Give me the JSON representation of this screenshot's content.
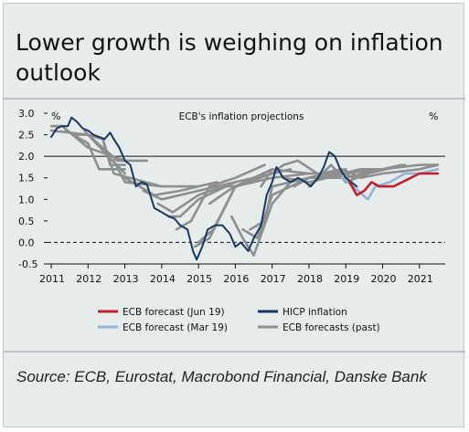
{
  "title": "Lower growth is weighing on inflation outlook",
  "source": "Source: ECB, Eurostat, Macrobond Financial, Danske Bank",
  "colors": {
    "background": "#e6ebec",
    "hicp": "#17375e",
    "jun19": "#c0202a",
    "mar19": "#93b3d2",
    "past": "#8e8e8e"
  },
  "chart_data": {
    "type": "line",
    "title": "ECB's inflation projections",
    "ylabel_left": "%",
    "ylabel_right": "%",
    "ylim": [
      -0.5,
      3.0
    ],
    "yticks": [
      3.0,
      2.5,
      2.0,
      1.5,
      1.0,
      0.5,
      0.0,
      -0.5
    ],
    "ytick_labels": [
      "3.0",
      "2.5",
      "2.0",
      "1.5",
      "1.0",
      "0.5",
      "0.0",
      "-0.5"
    ],
    "xlim": [
      2010.9,
      2021.7
    ],
    "xticks": [
      2011,
      2012,
      2013,
      2014,
      2015,
      2016,
      2017,
      2018,
      2019,
      2020,
      2021
    ],
    "xtick_labels": [
      "2011",
      "2012",
      "2013",
      "2014",
      "2015",
      "2016",
      "2017",
      "2018",
      "2019",
      "2020",
      "2021"
    ],
    "reference_lines": [
      {
        "y": 2.0,
        "style": "solid"
      },
      {
        "y": 0.0,
        "style": "dashed"
      }
    ],
    "legend": [
      {
        "label": "ECB forecast (Jun 19)",
        "series": "jun19"
      },
      {
        "label": "HICP inflation",
        "series": "hicp"
      },
      {
        "label": "ECB forecast (Mar 19)",
        "series": "mar19"
      },
      {
        "label": "ECB forecasts (past)",
        "series": "past"
      }
    ],
    "series": [
      {
        "key": "past",
        "points": [
          [
            2011.0,
            2.6
          ],
          [
            2012.0,
            2.5
          ],
          [
            2013.0,
            1.6
          ]
        ]
      },
      {
        "key": "past",
        "points": [
          [
            2011.0,
            2.7
          ],
          [
            2011.3,
            2.7
          ],
          [
            2012.0,
            2.2
          ],
          [
            2013.0,
            1.9
          ]
        ]
      },
      {
        "key": "past",
        "points": [
          [
            2011.4,
            2.6
          ],
          [
            2012.0,
            2.3
          ],
          [
            2012.3,
            1.7
          ],
          [
            2013.0,
            1.7
          ]
        ]
      },
      {
        "key": "past",
        "points": [
          [
            2011.6,
            2.5
          ],
          [
            2012.0,
            2.5
          ],
          [
            2012.4,
            2.4
          ],
          [
            2012.6,
            1.8
          ],
          [
            2013.0,
            1.8
          ]
        ]
      },
      {
        "key": "past",
        "points": [
          [
            2011.9,
            2.6
          ],
          [
            2012.0,
            2.5
          ],
          [
            2012.8,
            1.9
          ],
          [
            2013.6,
            1.9
          ]
        ]
      },
      {
        "key": "past",
        "points": [
          [
            2012.4,
            2.4
          ],
          [
            2012.7,
            1.6
          ],
          [
            2014.0,
            1.3
          ]
        ]
      },
      {
        "key": "past",
        "points": [
          [
            2012.7,
            1.9
          ],
          [
            2013.0,
            1.4
          ],
          [
            2014.0,
            1.3
          ],
          [
            2015.0,
            1.3
          ]
        ]
      },
      {
        "key": "past",
        "points": [
          [
            2013.0,
            1.5
          ],
          [
            2013.8,
            1.1
          ],
          [
            2014.5,
            1.2
          ],
          [
            2015.5,
            1.4
          ]
        ]
      },
      {
        "key": "past",
        "points": [
          [
            2013.5,
            1.2
          ],
          [
            2014.0,
            1.0
          ],
          [
            2015.0,
            1.2
          ],
          [
            2016.0,
            1.4
          ]
        ]
      },
      {
        "key": "past",
        "points": [
          [
            2013.9,
            0.9
          ],
          [
            2014.3,
            0.7
          ],
          [
            2015.0,
            1.1
          ],
          [
            2016.0,
            1.4
          ]
        ]
      },
      {
        "key": "past",
        "points": [
          [
            2014.2,
            0.6
          ],
          [
            2014.5,
            0.6
          ],
          [
            2015.0,
            1.0
          ],
          [
            2016.0,
            1.4
          ],
          [
            2016.5,
            1.5
          ]
        ]
      },
      {
        "key": "past",
        "points": [
          [
            2014.4,
            0.3
          ],
          [
            2014.8,
            0.5
          ],
          [
            2015.3,
            1.3
          ],
          [
            2016.0,
            1.5
          ],
          [
            2016.8,
            1.8
          ]
        ]
      },
      {
        "key": "past",
        "points": [
          [
            2014.9,
            -0.1
          ],
          [
            2015.3,
            0.1
          ],
          [
            2016.0,
            1.3
          ],
          [
            2017.0,
            1.6
          ]
        ]
      },
      {
        "key": "past",
        "points": [
          [
            2015.0,
            0.0
          ],
          [
            2015.4,
            0.3
          ],
          [
            2016.0,
            1.3
          ],
          [
            2017.0,
            1.7
          ]
        ]
      },
      {
        "key": "past",
        "points": [
          [
            2015.3,
            0.9
          ],
          [
            2015.8,
            1.2
          ],
          [
            2016.5,
            1.5
          ],
          [
            2017.5,
            1.7
          ]
        ]
      },
      {
        "key": "past",
        "points": [
          [
            2015.6,
            1.3
          ],
          [
            2016.0,
            1.3
          ],
          [
            2017.0,
            1.5
          ],
          [
            2018.0,
            1.6
          ]
        ]
      },
      {
        "key": "past",
        "points": [
          [
            2015.9,
            0.6
          ],
          [
            2016.2,
            0.1
          ],
          [
            2016.5,
            -0.3
          ],
          [
            2017.0,
            0.9
          ],
          [
            2017.5,
            1.4
          ],
          [
            2018.5,
            1.6
          ]
        ]
      },
      {
        "key": "past",
        "points": [
          [
            2016.2,
            0.3
          ],
          [
            2016.6,
            0.1
          ],
          [
            2017.0,
            1.1
          ],
          [
            2018.0,
            1.5
          ],
          [
            2018.7,
            1.6
          ]
        ]
      },
      {
        "key": "past",
        "points": [
          [
            2016.4,
            0.3
          ],
          [
            2016.8,
            0.5
          ],
          [
            2017.0,
            1.3
          ],
          [
            2018.0,
            1.5
          ],
          [
            2019.0,
            1.7
          ]
        ]
      },
      {
        "key": "past",
        "points": [
          [
            2016.7,
            1.3
          ],
          [
            2017.0,
            1.7
          ],
          [
            2018.0,
            1.6
          ],
          [
            2019.0,
            1.6
          ],
          [
            2019.7,
            1.7
          ]
        ]
      },
      {
        "key": "past",
        "points": [
          [
            2017.0,
            1.6
          ],
          [
            2017.3,
            1.8
          ],
          [
            2017.7,
            1.9
          ],
          [
            2018.4,
            1.5
          ],
          [
            2019.4,
            1.7
          ],
          [
            2020.0,
            1.7
          ]
        ]
      },
      {
        "key": "past",
        "points": [
          [
            2017.3,
            1.5
          ],
          [
            2018.0,
            1.4
          ],
          [
            2019.0,
            1.6
          ],
          [
            2020.0,
            1.7
          ]
        ]
      },
      {
        "key": "past",
        "points": [
          [
            2017.6,
            1.3
          ],
          [
            2018.0,
            1.5
          ],
          [
            2019.0,
            1.5
          ],
          [
            2020.0,
            1.7
          ],
          [
            2020.5,
            1.8
          ]
        ]
      },
      {
        "key": "past",
        "points": [
          [
            2018.0,
            1.3
          ],
          [
            2018.6,
            1.8
          ],
          [
            2019.0,
            1.4
          ],
          [
            2019.6,
            1.6
          ],
          [
            2020.6,
            1.8
          ]
        ]
      },
      {
        "key": "past",
        "points": [
          [
            2018.3,
            1.6
          ],
          [
            2018.9,
            1.7
          ],
          [
            2019.4,
            1.5
          ],
          [
            2020.0,
            1.6
          ],
          [
            2021.0,
            1.7
          ],
          [
            2021.5,
            1.8
          ]
        ]
      },
      {
        "key": "past",
        "points": [
          [
            2018.7,
            1.7
          ],
          [
            2019.2,
            1.5
          ],
          [
            2020.0,
            1.7
          ],
          [
            2021.0,
            1.8
          ],
          [
            2021.5,
            1.8
          ]
        ]
      },
      {
        "key": "mar19",
        "points": [
          [
            2018.9,
            1.5
          ],
          [
            2019.2,
            1.3
          ],
          [
            2019.6,
            1.0
          ],
          [
            2019.8,
            1.3
          ],
          [
            2020.2,
            1.4
          ],
          [
            2020.6,
            1.6
          ],
          [
            2021.0,
            1.6
          ],
          [
            2021.5,
            1.7
          ]
        ]
      },
      {
        "key": "jun19",
        "points": [
          [
            2019.1,
            1.4
          ],
          [
            2019.3,
            1.1
          ],
          [
            2019.5,
            1.2
          ],
          [
            2019.7,
            1.4
          ],
          [
            2019.9,
            1.3
          ],
          [
            2020.3,
            1.3
          ],
          [
            2021.0,
            1.6
          ],
          [
            2021.5,
            1.6
          ]
        ]
      },
      {
        "key": "hicp",
        "points": [
          [
            2011.0,
            2.45
          ],
          [
            2011.15,
            2.65
          ],
          [
            2011.3,
            2.7
          ],
          [
            2011.45,
            2.7
          ],
          [
            2011.55,
            2.9
          ],
          [
            2011.7,
            2.8
          ],
          [
            2011.85,
            2.65
          ],
          [
            2012.0,
            2.6
          ],
          [
            2012.15,
            2.5
          ],
          [
            2012.3,
            2.45
          ],
          [
            2012.45,
            2.4
          ],
          [
            2012.6,
            2.55
          ],
          [
            2012.7,
            2.4
          ],
          [
            2012.85,
            2.2
          ],
          [
            2013.0,
            1.9
          ],
          [
            2013.15,
            1.8
          ],
          [
            2013.3,
            1.3
          ],
          [
            2013.45,
            1.4
          ],
          [
            2013.6,
            1.35
          ],
          [
            2013.8,
            0.8
          ],
          [
            2014.0,
            0.7
          ],
          [
            2014.2,
            0.6
          ],
          [
            2014.35,
            0.55
          ],
          [
            2014.5,
            0.4
          ],
          [
            2014.7,
            0.3
          ],
          [
            2014.85,
            -0.2
          ],
          [
            2014.95,
            -0.4
          ],
          [
            2015.1,
            -0.1
          ],
          [
            2015.25,
            0.3
          ],
          [
            2015.45,
            0.4
          ],
          [
            2015.65,
            0.4
          ],
          [
            2015.85,
            0.2
          ],
          [
            2016.0,
            -0.1
          ],
          [
            2016.15,
            0.0
          ],
          [
            2016.35,
            -0.2
          ],
          [
            2016.5,
            0.1
          ],
          [
            2016.7,
            0.4
          ],
          [
            2016.85,
            1.1
          ],
          [
            2017.0,
            1.4
          ],
          [
            2017.12,
            1.75
          ],
          [
            2017.3,
            1.5
          ],
          [
            2017.5,
            1.4
          ],
          [
            2017.7,
            1.5
          ],
          [
            2017.9,
            1.4
          ],
          [
            2018.05,
            1.3
          ],
          [
            2018.25,
            1.5
          ],
          [
            2018.4,
            1.75
          ],
          [
            2018.55,
            2.1
          ],
          [
            2018.7,
            2.0
          ],
          [
            2018.85,
            1.7
          ],
          [
            2019.0,
            1.5
          ],
          [
            2019.15,
            1.4
          ],
          [
            2019.3,
            1.3
          ]
        ]
      }
    ]
  }
}
